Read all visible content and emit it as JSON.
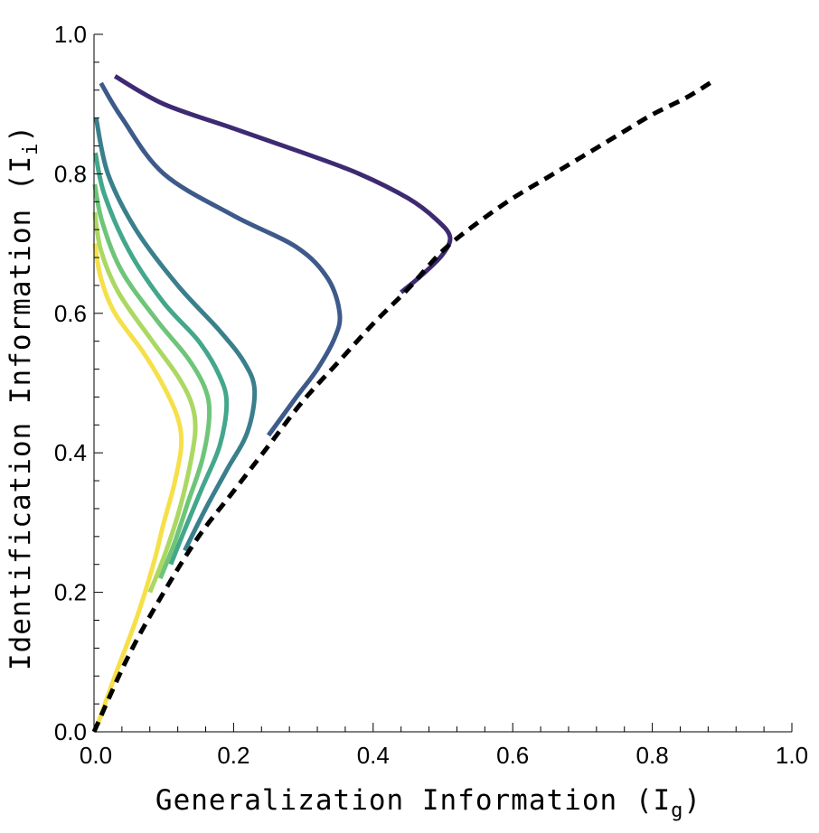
{
  "chart_data": {
    "type": "line",
    "xlabel": "Generalization Information",
    "xlabel_symbol": "I",
    "xlabel_sub": "g",
    "ylabel": "Identification Information",
    "ylabel_symbol": "I",
    "ylabel_sub": "i",
    "xlim": [
      0,
      1
    ],
    "ylim": [
      0,
      1
    ],
    "xticks": [
      "0.0",
      "0.2",
      "0.4",
      "0.6",
      "0.8",
      "1.0"
    ],
    "yticks": [
      "0.0",
      "0.2",
      "0.4",
      "0.6",
      "0.8",
      "1.0"
    ],
    "grid": false,
    "legend": "none",
    "frontier": {
      "style": "dashed",
      "color": "#000000",
      "points": [
        [
          0,
          0
        ],
        [
          0.05,
          0.11
        ],
        [
          0.1,
          0.2
        ],
        [
          0.15,
          0.28
        ],
        [
          0.2,
          0.345
        ],
        [
          0.25,
          0.41
        ],
        [
          0.3,
          0.475
        ],
        [
          0.35,
          0.53
        ],
        [
          0.4,
          0.585
        ],
        [
          0.45,
          0.635
        ],
        [
          0.5,
          0.69
        ],
        [
          0.55,
          0.73
        ],
        [
          0.6,
          0.765
        ],
        [
          0.65,
          0.795
        ],
        [
          0.7,
          0.825
        ],
        [
          0.75,
          0.855
        ],
        [
          0.8,
          0.885
        ],
        [
          0.85,
          0.91
        ],
        [
          0.89,
          0.935
        ]
      ]
    },
    "series": [
      {
        "color": "#3e2a72",
        "points": [
          [
            0.03,
            0.94
          ],
          [
            0.1,
            0.9
          ],
          [
            0.2,
            0.865
          ],
          [
            0.3,
            0.83
          ],
          [
            0.38,
            0.8
          ],
          [
            0.45,
            0.765
          ],
          [
            0.49,
            0.735
          ],
          [
            0.51,
            0.71
          ],
          [
            0.5,
            0.685
          ],
          [
            0.47,
            0.655
          ],
          [
            0.44,
            0.63
          ]
        ]
      },
      {
        "color": "#3d5a8a",
        "points": [
          [
            0.01,
            0.93
          ],
          [
            0.04,
            0.88
          ],
          [
            0.1,
            0.8
          ],
          [
            0.2,
            0.74
          ],
          [
            0.29,
            0.695
          ],
          [
            0.335,
            0.65
          ],
          [
            0.352,
            0.6
          ],
          [
            0.345,
            0.565
          ],
          [
            0.32,
            0.52
          ],
          [
            0.29,
            0.48
          ],
          [
            0.25,
            0.425
          ]
        ]
      },
      {
        "color": "#3a7f8c",
        "points": [
          [
            0.003,
            0.88
          ],
          [
            0.02,
            0.8
          ],
          [
            0.06,
            0.72
          ],
          [
            0.12,
            0.64
          ],
          [
            0.18,
            0.575
          ],
          [
            0.215,
            0.53
          ],
          [
            0.23,
            0.49
          ],
          [
            0.22,
            0.43
          ],
          [
            0.19,
            0.375
          ],
          [
            0.16,
            0.32
          ],
          [
            0.13,
            0.26
          ]
        ]
      },
      {
        "color": "#43a78b",
        "points": [
          [
            0.002,
            0.83
          ],
          [
            0.015,
            0.77
          ],
          [
            0.05,
            0.69
          ],
          [
            0.1,
            0.615
          ],
          [
            0.15,
            0.56
          ],
          [
            0.18,
            0.51
          ],
          [
            0.19,
            0.47
          ],
          [
            0.18,
            0.41
          ],
          [
            0.155,
            0.35
          ],
          [
            0.13,
            0.29
          ],
          [
            0.11,
            0.24
          ]
        ]
      },
      {
        "color": "#6ec579",
        "points": [
          [
            0.001,
            0.785
          ],
          [
            0.012,
            0.73
          ],
          [
            0.04,
            0.66
          ],
          [
            0.09,
            0.59
          ],
          [
            0.135,
            0.535
          ],
          [
            0.16,
            0.49
          ],
          [
            0.165,
            0.45
          ],
          [
            0.155,
            0.39
          ],
          [
            0.135,
            0.33
          ],
          [
            0.115,
            0.27
          ],
          [
            0.095,
            0.22
          ]
        ]
      },
      {
        "color": "#abd862",
        "points": [
          [
            0.001,
            0.745
          ],
          [
            0.01,
            0.69
          ],
          [
            0.035,
            0.63
          ],
          [
            0.08,
            0.565
          ],
          [
            0.12,
            0.51
          ],
          [
            0.14,
            0.47
          ],
          [
            0.145,
            0.43
          ],
          [
            0.135,
            0.37
          ],
          [
            0.12,
            0.31
          ],
          [
            0.1,
            0.25
          ],
          [
            0.08,
            0.2
          ]
        ]
      },
      {
        "color": "#f5e04a",
        "points": [
          [
            0.001,
            0.7
          ],
          [
            0.01,
            0.65
          ],
          [
            0.03,
            0.6
          ],
          [
            0.07,
            0.545
          ],
          [
            0.1,
            0.495
          ],
          [
            0.12,
            0.45
          ],
          [
            0.125,
            0.41
          ],
          [
            0.115,
            0.355
          ],
          [
            0.1,
            0.3
          ],
          [
            0.085,
            0.24
          ],
          [
            0.06,
            0.16
          ],
          [
            0.03,
            0.08
          ],
          [
            0.005,
            0.01
          ]
        ]
      }
    ]
  }
}
